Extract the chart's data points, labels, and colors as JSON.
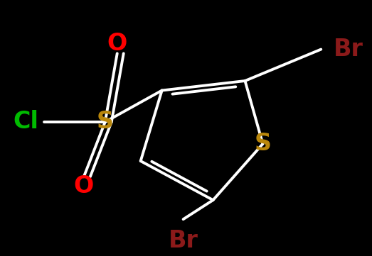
{
  "bg_color": "#000000",
  "bond_color": "#ffffff",
  "atom_colors": {
    "Br": "#8b1a1a",
    "S_sulfonyl": "#b8860b",
    "S_thiophene": "#b8860b",
    "O": "#ff0000",
    "Cl": "#00bb00"
  },
  "figsize": [
    5.23,
    3.61
  ],
  "dpi": 100,
  "bond_lw": 2.8,
  "font_size_atoms": 24,
  "font_size_Cl": 24,
  "font_size_Br": 24
}
